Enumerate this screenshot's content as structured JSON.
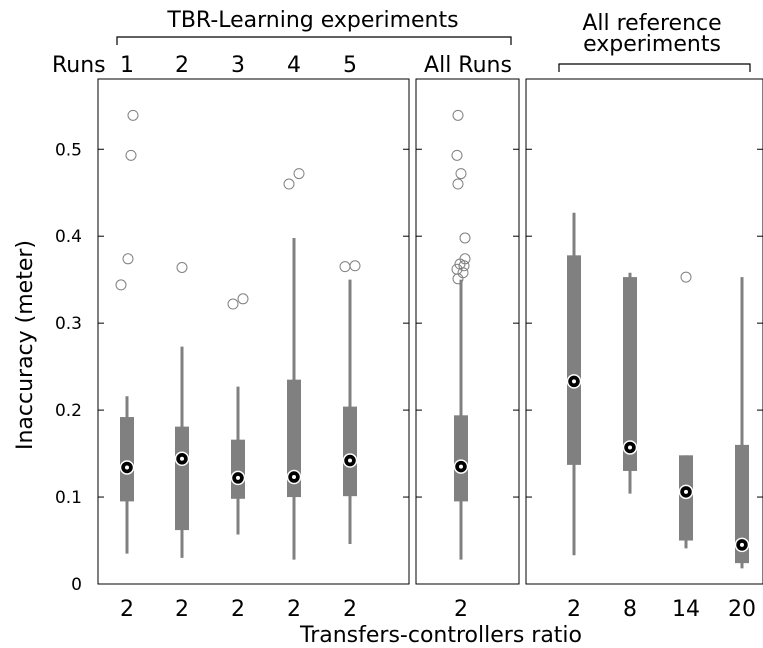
{
  "chart_data": {
    "type": "box",
    "ylabel": "Inaccuracy (meter)",
    "xlabel": "Transfers-controllers ratio",
    "ylim": [
      0,
      0.58
    ],
    "yticks": [
      0,
      0.1,
      0.2,
      0.3,
      0.4,
      0.5
    ],
    "group_labels": {
      "tbr": "TBR-Learning experiments",
      "runs_prefix": "Runs",
      "all_runs": "All Runs",
      "reference_line1": "All reference",
      "reference_line2": "experiments"
    },
    "panels": [
      {
        "id": "tbr-runs",
        "boxes": [
          {
            "run": "1",
            "x": "2",
            "whisker_low": 0.035,
            "q1": 0.095,
            "median": 0.134,
            "q3": 0.192,
            "whisker_high": 0.216,
            "outliers": [
              0.344,
              0.374,
              0.493,
              0.539
            ]
          },
          {
            "run": "2",
            "x": "2",
            "whisker_low": 0.03,
            "q1": 0.062,
            "median": 0.144,
            "q3": 0.181,
            "whisker_high": 0.273,
            "outliers": [
              0.364
            ]
          },
          {
            "run": "3",
            "x": "2",
            "whisker_low": 0.057,
            "q1": 0.098,
            "median": 0.122,
            "q3": 0.166,
            "whisker_high": 0.227,
            "outliers": [
              0.322,
              0.328
            ]
          },
          {
            "run": "4",
            "x": "2",
            "whisker_low": 0.028,
            "q1": 0.1,
            "median": 0.123,
            "q3": 0.235,
            "whisker_high": 0.398,
            "outliers": [
              0.46,
              0.472
            ]
          },
          {
            "run": "5",
            "x": "2",
            "whisker_low": 0.046,
            "q1": 0.101,
            "median": 0.142,
            "q3": 0.204,
            "whisker_high": 0.35,
            "outliers": [
              0.365,
              0.366
            ]
          }
        ]
      },
      {
        "id": "all-runs",
        "boxes": [
          {
            "x": "2",
            "whisker_low": 0.028,
            "q1": 0.095,
            "median": 0.135,
            "q3": 0.194,
            "whisker_high": 0.35,
            "outliers": [
              0.351,
              0.358,
              0.362,
              0.366,
              0.368,
              0.374,
              0.398,
              0.46,
              0.472,
              0.493,
              0.539
            ]
          }
        ]
      },
      {
        "id": "reference",
        "boxes": [
          {
            "x": "2",
            "whisker_low": 0.033,
            "q1": 0.137,
            "median": 0.233,
            "q3": 0.378,
            "whisker_high": 0.427,
            "outliers": []
          },
          {
            "x": "8",
            "whisker_low": 0.104,
            "q1": 0.13,
            "median": 0.157,
            "q3": 0.353,
            "whisker_high": 0.358,
            "outliers": []
          },
          {
            "x": "14",
            "whisker_low": 0.041,
            "q1": 0.05,
            "median": 0.106,
            "q3": 0.148,
            "whisker_high": 0.148,
            "outliers": [
              0.353
            ]
          },
          {
            "x": "20",
            "whisker_low": 0.018,
            "q1": 0.024,
            "median": 0.045,
            "q3": 0.16,
            "whisker_high": 0.353,
            "outliers": []
          }
        ]
      }
    ],
    "colors": {
      "box": "#808080",
      "median_fill": "#000000",
      "median_dot": "#ffffff",
      "outlier": "#808080"
    }
  }
}
